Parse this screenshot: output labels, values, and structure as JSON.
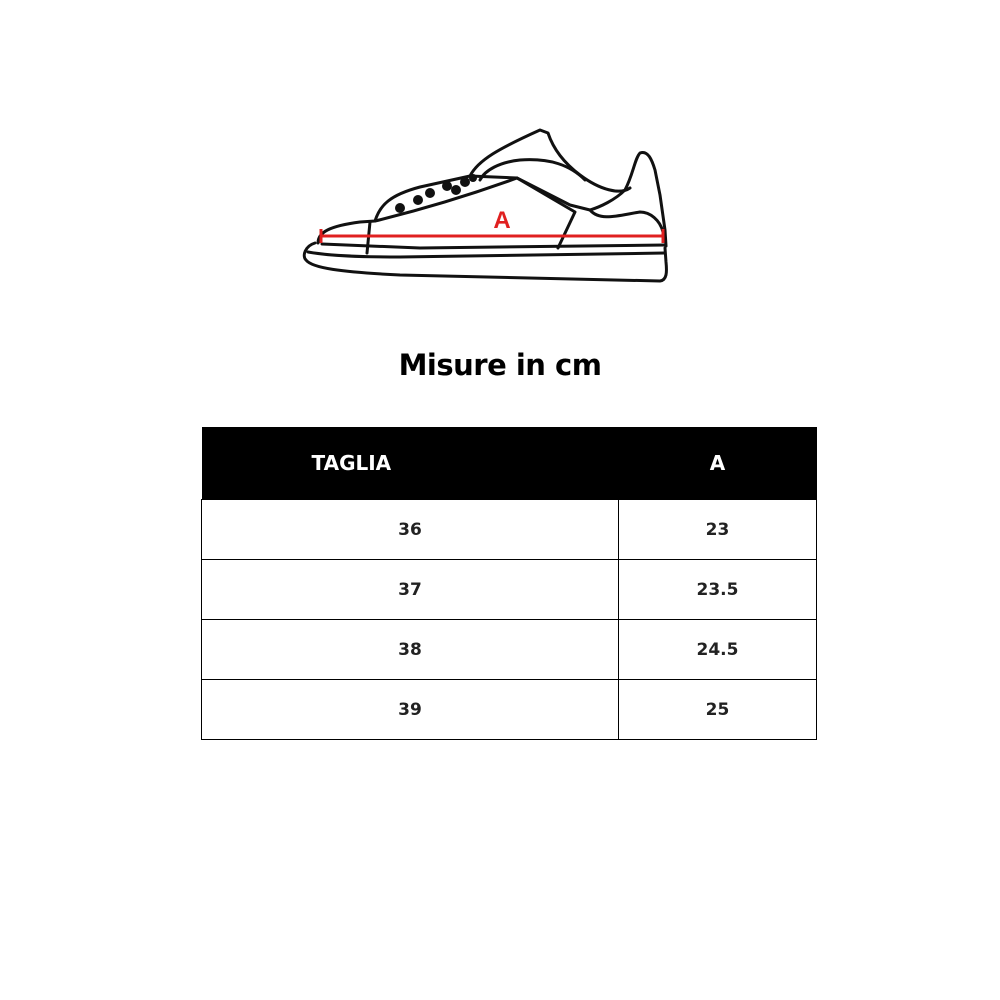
{
  "diagram": {
    "measure_label": "A",
    "accent_color": "#e02020"
  },
  "title": "Misure in cm",
  "table": {
    "headers": [
      "TAGLIA",
      "A"
    ],
    "rows": [
      [
        "36",
        "23"
      ],
      [
        "37",
        "23.5"
      ],
      [
        "38",
        "24.5"
      ],
      [
        "39",
        "25"
      ]
    ]
  }
}
